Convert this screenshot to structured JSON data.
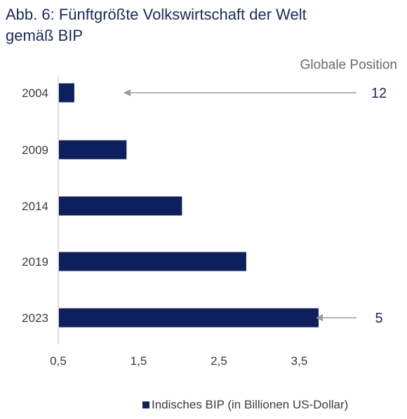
{
  "title": {
    "line1": "Abb. 6: Fünftgrößte Volkswirtschaft der Welt",
    "line2": "gemäß BIP"
  },
  "colors": {
    "bar": "#0d1f5c",
    "title": "#1a2b5e",
    "arrow": "#9a9a9a",
    "position_label": "#1a2b5e"
  },
  "chart_data": {
    "type": "bar",
    "orientation": "horizontal",
    "categories": [
      "2004",
      "2009",
      "2014",
      "2019",
      "2023"
    ],
    "series": [
      {
        "name": "Indisches BIP (in Billionen US-Dollar)",
        "values": [
          0.7,
          1.35,
          2.04,
          2.84,
          3.74
        ]
      }
    ],
    "xticks": [
      "0,5",
      "1,5",
      "2,5",
      "3,5"
    ],
    "xtick_values": [
      0.5,
      1.5,
      2.5,
      3.5
    ],
    "xlim": [
      0.5,
      4.0
    ],
    "grid": false,
    "legend_position": "bottom-right",
    "annotations": {
      "header": "Globale Position",
      "items": [
        {
          "category": "2004",
          "label": "12"
        },
        {
          "category": "2023",
          "label": "5"
        }
      ]
    }
  }
}
